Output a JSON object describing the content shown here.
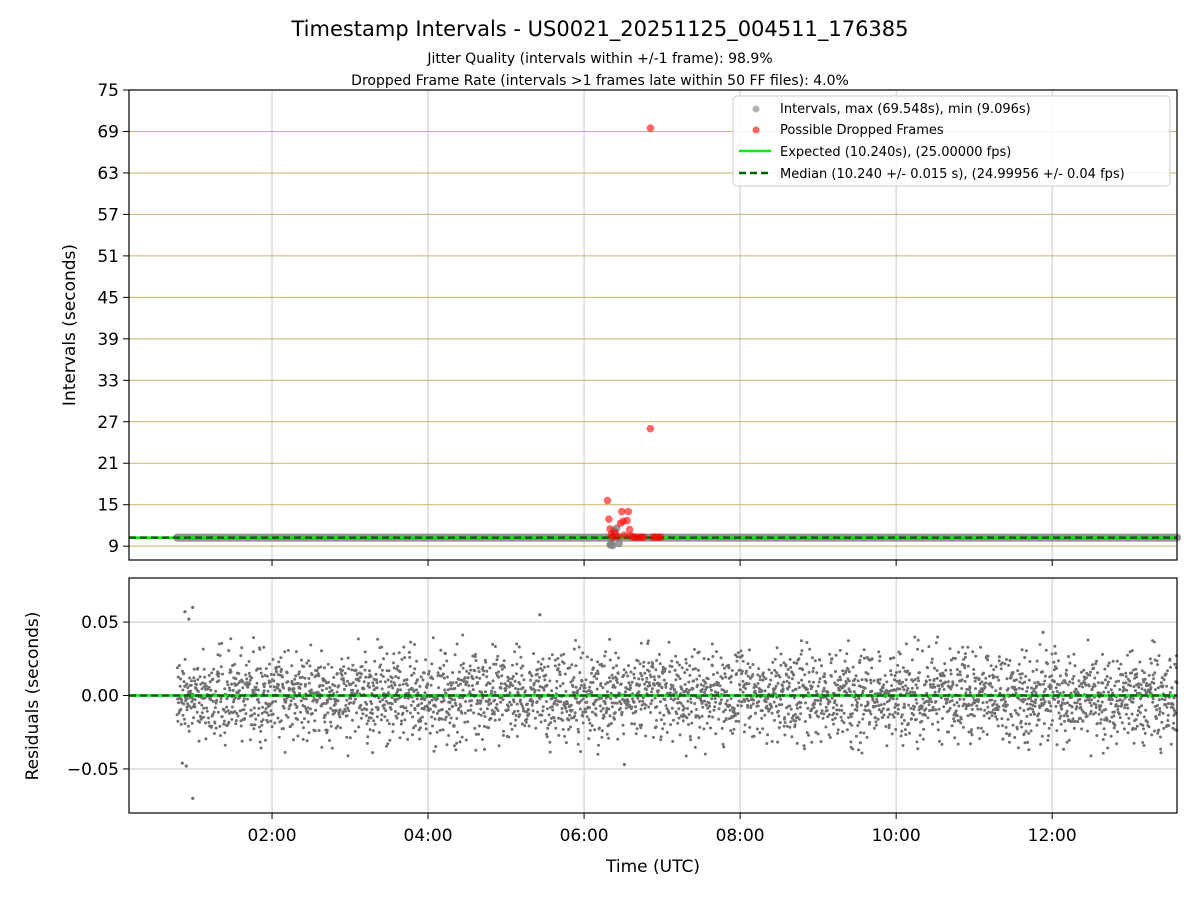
{
  "title": "Timestamp Intervals - US0021_20251125_004511_176385",
  "subtitle_1": "Jitter Quality (intervals within +/-1 frame): 98.9%",
  "subtitle_2": "Dropped Frame Rate (intervals >1 frames late within 50 FF files): 4.0%",
  "colors": {
    "intervals": "#808080",
    "dropped": "#ff0000",
    "expected": "#00ee00",
    "median": "#006400",
    "hgrid_top": "#c9b266",
    "grid": "#c8c8c8",
    "residuals": "#707070"
  },
  "chart_data": [
    {
      "type": "scatter",
      "panel": "top",
      "ylabel": "Intervals (seconds)",
      "xlim": [
        "00:10",
        "13:36"
      ],
      "ylim": [
        7,
        75
      ],
      "yticks": [
        "9",
        "15",
        "21",
        "27",
        "33",
        "39",
        "45",
        "51",
        "57",
        "63",
        "69",
        "75"
      ],
      "xticks": [
        "02:00",
        "04:00",
        "06:00",
        "08:00",
        "10:00",
        "12:00"
      ],
      "grid": true,
      "legend": {
        "position": "top-right",
        "entries": [
          "Intervals, max (69.548s), min (9.096s)",
          "Possible Dropped Frames",
          "Expected (10.240s), (25.00000 fps)",
          "Median (10.240 +/- 0.015 s), (24.99956 +/- 0.04 fps)"
        ]
      },
      "series": [
        {
          "name": "Intervals, max (69.548s), min (9.096s)",
          "marker": "circle",
          "baseline_range": [
            "00:47",
            "13:36"
          ],
          "baseline_value": 10.24,
          "points": [
            {
              "x": "06:20",
              "y": 9.2
            },
            {
              "x": "06:21",
              "y": 9.3
            },
            {
              "x": "06:22",
              "y": 9.1
            },
            {
              "x": "06:23",
              "y": 11.2
            },
            {
              "x": "06:25",
              "y": 11.6
            },
            {
              "x": "06:27",
              "y": 9.4
            }
          ]
        },
        {
          "name": "Possible Dropped Frames",
          "marker": "circle",
          "points": [
            {
              "x": "06:18",
              "y": 15.6
            },
            {
              "x": "06:19",
              "y": 12.9
            },
            {
              "x": "06:20",
              "y": 11.5
            },
            {
              "x": "06:21",
              "y": 10.7
            },
            {
              "x": "06:22",
              "y": 10.3
            },
            {
              "x": "06:24",
              "y": 10.9
            },
            {
              "x": "06:26",
              "y": 10.4
            },
            {
              "x": "06:28",
              "y": 12.3
            },
            {
              "x": "06:29",
              "y": 14.0
            },
            {
              "x": "06:30",
              "y": 12.6
            },
            {
              "x": "06:31",
              "y": 10.6
            },
            {
              "x": "06:33",
              "y": 12.7
            },
            {
              "x": "06:34",
              "y": 14.0
            },
            {
              "x": "06:35",
              "y": 11.4
            },
            {
              "x": "06:36",
              "y": 10.5
            },
            {
              "x": "06:38",
              "y": 10.3
            },
            {
              "x": "06:40",
              "y": 10.3
            },
            {
              "x": "06:42",
              "y": 10.3
            },
            {
              "x": "06:44",
              "y": 10.3
            },
            {
              "x": "06:46",
              "y": 10.3
            },
            {
              "x": "06:51",
              "y": 69.5
            },
            {
              "x": "06:51",
              "y": 26.0
            },
            {
              "x": "06:53",
              "y": 10.3
            },
            {
              "x": "06:55",
              "y": 10.3
            },
            {
              "x": "06:57",
              "y": 10.3
            },
            {
              "x": "06:59",
              "y": 10.3
            }
          ]
        },
        {
          "name": "Expected (10.240s), (25.00000 fps)",
          "line": "solid",
          "y": 10.24
        },
        {
          "name": "Median (10.240 +/- 0.015 s), (24.99956 +/- 0.04 fps)",
          "line": "dashed",
          "y": 10.24
        }
      ]
    },
    {
      "type": "scatter",
      "panel": "bottom",
      "xlabel": "Time (UTC)",
      "ylabel": "Residuals (seconds)",
      "xlim": [
        "00:10",
        "13:36"
      ],
      "ylim": [
        -0.08,
        0.08
      ],
      "yticks": [
        "−0.05",
        "0.00",
        "0.05"
      ],
      "xticks": [
        "02:00",
        "04:00",
        "06:00",
        "08:00",
        "10:00",
        "12:00"
      ],
      "grid": true,
      "residual_spread": 0.015,
      "sample_range": [
        "00:47",
        "13:36"
      ],
      "zero_lines": [
        0
      ],
      "outliers": [
        {
          "x": "00:53",
          "y": 0.057
        },
        {
          "x": "00:56",
          "y": 0.052
        },
        {
          "x": "00:59",
          "y": 0.06
        },
        {
          "x": "00:59",
          "y": -0.07
        },
        {
          "x": "00:51",
          "y": -0.046
        },
        {
          "x": "00:54",
          "y": -0.048
        },
        {
          "x": "05:26",
          "y": 0.055
        },
        {
          "x": "11:53",
          "y": 0.043
        },
        {
          "x": "06:31",
          "y": -0.047
        }
      ]
    }
  ]
}
